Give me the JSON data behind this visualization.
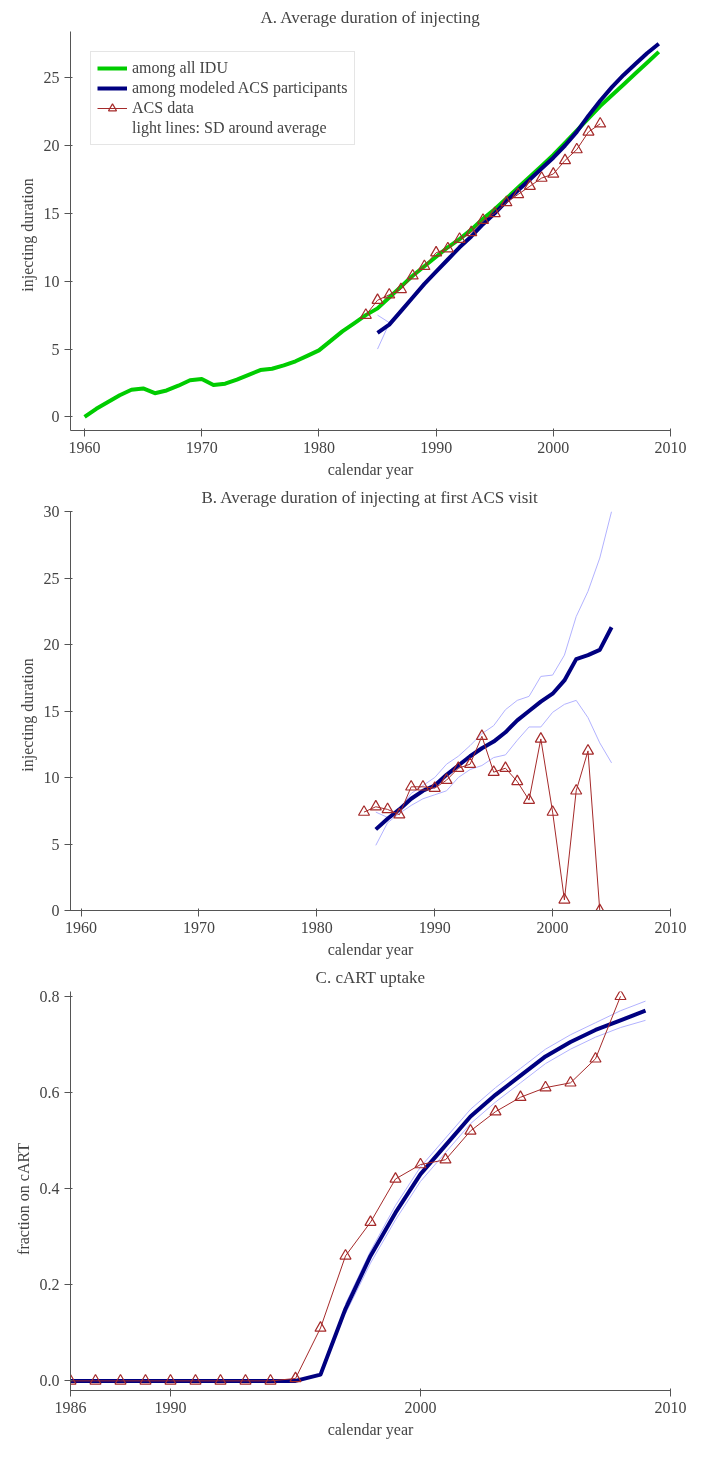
{
  "chart_data": [
    {
      "type": "line",
      "title": "A. Average duration of injecting",
      "xlabel": "calendar year",
      "ylabel": "injecting   duration",
      "xlim": [
        1958.8,
        2010
      ],
      "ylim": [
        -1.0,
        28.4
      ],
      "xticks": [
        1960,
        1970,
        1980,
        1990,
        2000,
        2010
      ],
      "yticks": [
        0,
        5,
        10,
        15,
        20,
        25
      ],
      "grid": false,
      "legend": "top left",
      "annotations": [
        "light lines: SD around average"
      ],
      "series": [
        {
          "name": "among all IDU",
          "color": "#00cc00",
          "x": [
            1960,
            1961,
            1962,
            1963,
            1964,
            1965,
            1966,
            1967,
            1968,
            1969,
            1970,
            1971,
            1972,
            1973,
            1974,
            1975,
            1976,
            1977,
            1978,
            1979,
            1980,
            1981,
            1982,
            1983,
            1984,
            1985,
            1986,
            1987,
            1988,
            1989,
            1990,
            1991,
            1992,
            1993,
            1994,
            1995,
            1996,
            1997,
            1998,
            1999,
            2000,
            2001,
            2002,
            2003,
            2004,
            2005,
            2006,
            2007,
            2008,
            2009
          ],
          "values": [
            0,
            0.6,
            1.1,
            1.6,
            2.0,
            2.1,
            1.75,
            1.95,
            2.3,
            2.7,
            2.8,
            2.35,
            2.45,
            2.75,
            3.1,
            3.45,
            3.55,
            3.8,
            4.1,
            4.5,
            4.9,
            5.6,
            6.3,
            6.9,
            7.5,
            8.0,
            8.8,
            9.6,
            10.4,
            11.1,
            11.8,
            12.5,
            13.1,
            13.8,
            14.6,
            15.3,
            16.1,
            16.9,
            17.7,
            18.5,
            19.3,
            20.2,
            21.1,
            22.0,
            22.9,
            23.7,
            24.5,
            25.3,
            26.1,
            26.9
          ]
        },
        {
          "color": "#b2b2ff",
          "marker": "none",
          "x": [
            1985,
            1986
          ],
          "values": [
            5.0,
            6.9
          ]
        },
        {
          "color": "#b2b2ff",
          "marker": "none",
          "x": [
            1985,
            1986
          ],
          "values": [
            7.5,
            6.95
          ]
        },
        {
          "name": "among modeled ACS participants",
          "color": "#000080",
          "x": [
            1985,
            1986,
            1987,
            1988,
            1989,
            1990,
            1991,
            1992,
            1993,
            1994,
            1995,
            1996,
            1997,
            1998,
            1999,
            2000,
            2001,
            2002,
            2003,
            2004,
            2005,
            2006,
            2007,
            2008,
            2009
          ],
          "values": [
            6.2,
            6.8,
            7.8,
            8.8,
            9.8,
            10.7,
            11.6,
            12.5,
            13.3,
            14.2,
            15.0,
            15.9,
            16.7,
            17.5,
            18.3,
            19.1,
            20.0,
            21.0,
            22.2,
            23.3,
            24.3,
            25.2,
            26.0,
            26.8,
            27.5
          ]
        },
        {
          "name": "ACS data",
          "color": "#a52a2a",
          "marker": "triangle",
          "x": [
            1984,
            1985,
            1986,
            1987,
            1988,
            1989,
            1990,
            1991,
            1992,
            1993,
            1994,
            1995,
            1996,
            1997,
            1998,
            1999,
            2000,
            2001,
            2002,
            2003,
            2004
          ],
          "values": [
            7.5,
            8.6,
            9.0,
            9.4,
            10.4,
            11.1,
            12.1,
            12.4,
            13.1,
            13.6,
            14.5,
            15.0,
            15.8,
            16.4,
            17.0,
            17.6,
            17.9,
            18.9,
            19.7,
            21.0,
            21.6
          ]
        }
      ]
    },
    {
      "type": "line",
      "title": "B. Average duration of injecting at first ACS visit",
      "xlabel": "calendar year",
      "ylabel": "injecting   duration",
      "xlim": [
        1959.1,
        2010
      ],
      "ylim": [
        0,
        30
      ],
      "xticks": [
        1960,
        1970,
        1980,
        1990,
        2000,
        2010
      ],
      "yticks": [
        0,
        5,
        10,
        15,
        20,
        25,
        30
      ],
      "grid": false,
      "series": [
        {
          "color": "#b2b2ff",
          "marker": "none",
          "x": [
            1985,
            1986,
            1987,
            1988,
            1989,
            1990,
            1991,
            1992,
            1993,
            1994,
            1995,
            1996,
            1997,
            1998,
            1999,
            2000,
            2001,
            2002,
            2003,
            2004,
            2005
          ],
          "values": [
            4.9,
            6.6,
            7.3,
            7.9,
            8.4,
            8.7,
            9.0,
            10.0,
            10.6,
            10.9,
            11.5,
            11.7,
            12.8,
            13.8,
            13.8,
            14.9,
            15.5,
            15.8,
            14.5,
            12.6,
            11.1
          ]
        },
        {
          "color": "#b2b2ff",
          "marker": "none",
          "x": [
            1985,
            1986,
            1987,
            1988,
            1989,
            1990,
            1991,
            1992,
            1993,
            1994,
            1995,
            1996,
            1997,
            1998,
            1999,
            2000,
            2001,
            2002,
            2003,
            2004,
            2005
          ],
          "values": [
            7.4,
            7.0,
            7.6,
            8.8,
            9.4,
            10.0,
            11.0,
            11.6,
            12.4,
            13.3,
            13.9,
            15.1,
            15.8,
            16.1,
            17.6,
            17.7,
            19.2,
            22.1,
            24.0,
            26.5,
            30.0
          ]
        },
        {
          "color": "#000080",
          "x": [
            1985,
            1986,
            1987,
            1988,
            1989,
            1990,
            1991,
            1992,
            1993,
            1994,
            1995,
            1996,
            1997,
            1998,
            1999,
            2000,
            2001,
            2002,
            2003,
            2004,
            2005
          ],
          "values": [
            6.1,
            6.9,
            7.6,
            8.4,
            9.0,
            9.4,
            10.2,
            10.9,
            11.6,
            12.2,
            12.7,
            13.4,
            14.3,
            15.0,
            15.7,
            16.3,
            17.3,
            18.9,
            19.2,
            19.6,
            21.3
          ]
        },
        {
          "color": "#a52a2a",
          "marker": "triangle",
          "x": [
            1984,
            1985,
            1986,
            1987,
            1988,
            1989,
            1990,
            1991,
            1992,
            1993,
            1994,
            1995,
            1996,
            1997,
            1998,
            1999,
            2000,
            2001,
            2002,
            2003,
            2004
          ],
          "values": [
            7.4,
            7.8,
            7.6,
            7.2,
            9.3,
            9.3,
            9.2,
            9.8,
            10.7,
            11.0,
            13.1,
            10.4,
            10.7,
            9.7,
            8.3,
            12.9,
            7.4,
            0.8,
            9.0,
            12.0,
            0
          ]
        }
      ]
    },
    {
      "type": "line",
      "title": "C. cART uptake",
      "xlabel": "calendar year",
      "ylabel": "fraction   on   cART",
      "xlim": [
        1986,
        2010
      ],
      "ylim": [
        -0.02,
        0.81
      ],
      "xticks": [
        1986,
        1990,
        2000,
        2010
      ],
      "yticks": [
        {
          "value": 0,
          "label": "0.0"
        },
        0.2,
        0.4,
        0.6,
        0.8
      ],
      "grid": false,
      "series": [
        {
          "color": "#b2b2ff",
          "marker": "none",
          "x": [
            1997,
            1998,
            1999,
            2000,
            2001,
            2002,
            2003,
            2004,
            2005,
            2006,
            2007,
            2008,
            2009
          ],
          "values": [
            0.14,
            0.245,
            0.335,
            0.415,
            0.475,
            0.535,
            0.58,
            0.62,
            0.66,
            0.69,
            0.715,
            0.735,
            0.75
          ]
        },
        {
          "color": "#b2b2ff",
          "marker": "none",
          "x": [
            1997,
            1998,
            1999,
            2000,
            2001,
            2002,
            2003,
            2004,
            2005,
            2006,
            2007,
            2008,
            2009
          ],
          "values": [
            0.16,
            0.27,
            0.365,
            0.445,
            0.505,
            0.565,
            0.61,
            0.65,
            0.69,
            0.72,
            0.745,
            0.77,
            0.79
          ]
        },
        {
          "color": "#000080",
          "x": [
            1986,
            1987,
            1988,
            1989,
            1990,
            1991,
            1992,
            1993,
            1994,
            1995,
            1996,
            1997,
            1998,
            1999,
            2000,
            2001,
            2002,
            2003,
            2004,
            2005,
            2006,
            2007,
            2008,
            2009
          ],
          "values": [
            0,
            0,
            0,
            0,
            0,
            0,
            0,
            0,
            0,
            0,
            0.013,
            0.15,
            0.26,
            0.35,
            0.43,
            0.49,
            0.55,
            0.595,
            0.635,
            0.675,
            0.705,
            0.73,
            0.75,
            0.77
          ]
        },
        {
          "color": "#a52a2a",
          "marker": "triangle",
          "x": [
            1986,
            1987,
            1988,
            1989,
            1990,
            1991,
            1992,
            1993,
            1994,
            1995,
            1996,
            1997,
            1998,
            1999,
            2000,
            2001,
            2002,
            2003,
            2004,
            2005,
            2006,
            2007,
            2008
          ],
          "values": [
            0,
            0,
            0,
            0,
            0,
            0,
            0,
            0,
            0,
            0.005,
            0.11,
            0.26,
            0.33,
            0.42,
            0.45,
            0.46,
            0.52,
            0.56,
            0.59,
            0.61,
            0.62,
            0.67,
            0.8
          ]
        }
      ]
    }
  ]
}
